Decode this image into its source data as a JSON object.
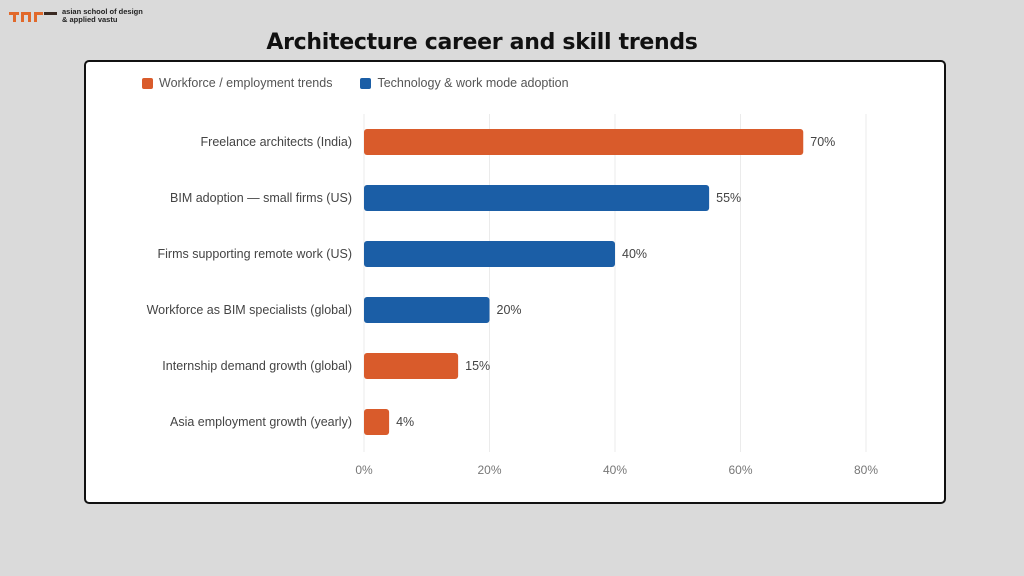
{
  "logo": {
    "text_line1": "asian school of design",
    "text_line2": "& applied vastu"
  },
  "chart_data": {
    "type": "bar",
    "orientation": "horizontal",
    "title": "Architecture career and skill trends",
    "categories": [
      "Freelance architects (India)",
      "BIM adoption — small firms (US)",
      "Firms supporting remote work (US)",
      "Workforce as BIM specialists (global)",
      "Internship demand growth (global)",
      "Asia employment growth (yearly)"
    ],
    "values": [
      70,
      55,
      40,
      20,
      15,
      4
    ],
    "data_labels": [
      "70%",
      "55%",
      "40%",
      "20%",
      "15%",
      "4%"
    ],
    "series_of_bar": [
      0,
      1,
      1,
      1,
      0,
      0
    ],
    "series": [
      {
        "name": "Workforce / employment trends",
        "color": "#d95b2b"
      },
      {
        "name": "Technology & work mode adoption",
        "color": "#1b5ea6"
      }
    ],
    "xlim": [
      0,
      80
    ],
    "xticks": [
      "0%",
      "20%",
      "40%",
      "60%",
      "80%"
    ],
    "xtick_values": [
      0,
      20,
      40,
      60,
      80
    ],
    "grid": true,
    "legend_position": "top-left"
  }
}
